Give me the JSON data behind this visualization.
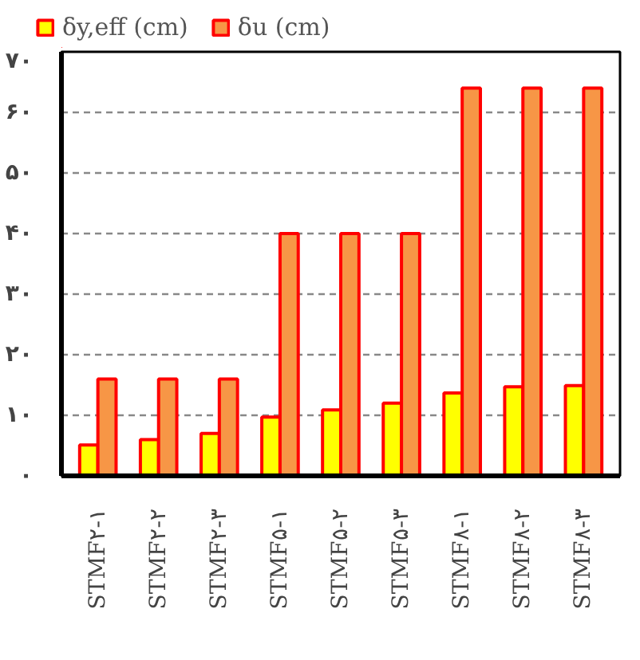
{
  "chart_data": {
    "type": "bar",
    "categories": [
      "STMF۲-۱",
      "STMF۲-۲",
      "STMF۲-۳",
      "STMF۵-۱",
      "STMF۵-۲",
      "STMF۵-۳",
      "STMF۸-۱",
      "STMF۸-۲",
      "STMF۸-۳"
    ],
    "series": [
      {
        "name": "δy,eff (cm)",
        "color": "#ffff00",
        "values": [
          5.1,
          6.0,
          7.0,
          9.7,
          10.9,
          12.0,
          13.7,
          14.7,
          14.9
        ]
      },
      {
        "name": "δu (cm)",
        "color": "#f79646",
        "values": [
          16,
          16,
          16,
          40,
          40,
          40,
          64,
          64,
          64
        ]
      }
    ],
    "ylim": [
      0,
      70
    ],
    "yticks": [
      {
        "value": 0,
        "label": "۰"
      },
      {
        "value": 10,
        "label": "۱۰"
      },
      {
        "value": 20,
        "label": "۲۰"
      },
      {
        "value": 30,
        "label": "۳۰"
      },
      {
        "value": 40,
        "label": "۴۰"
      },
      {
        "value": 50,
        "label": "۵۰"
      },
      {
        "value": 60,
        "label": "۶۰"
      },
      {
        "value": 70,
        "label": "۷۰"
      }
    ],
    "grid": "y",
    "legend": "top left"
  }
}
